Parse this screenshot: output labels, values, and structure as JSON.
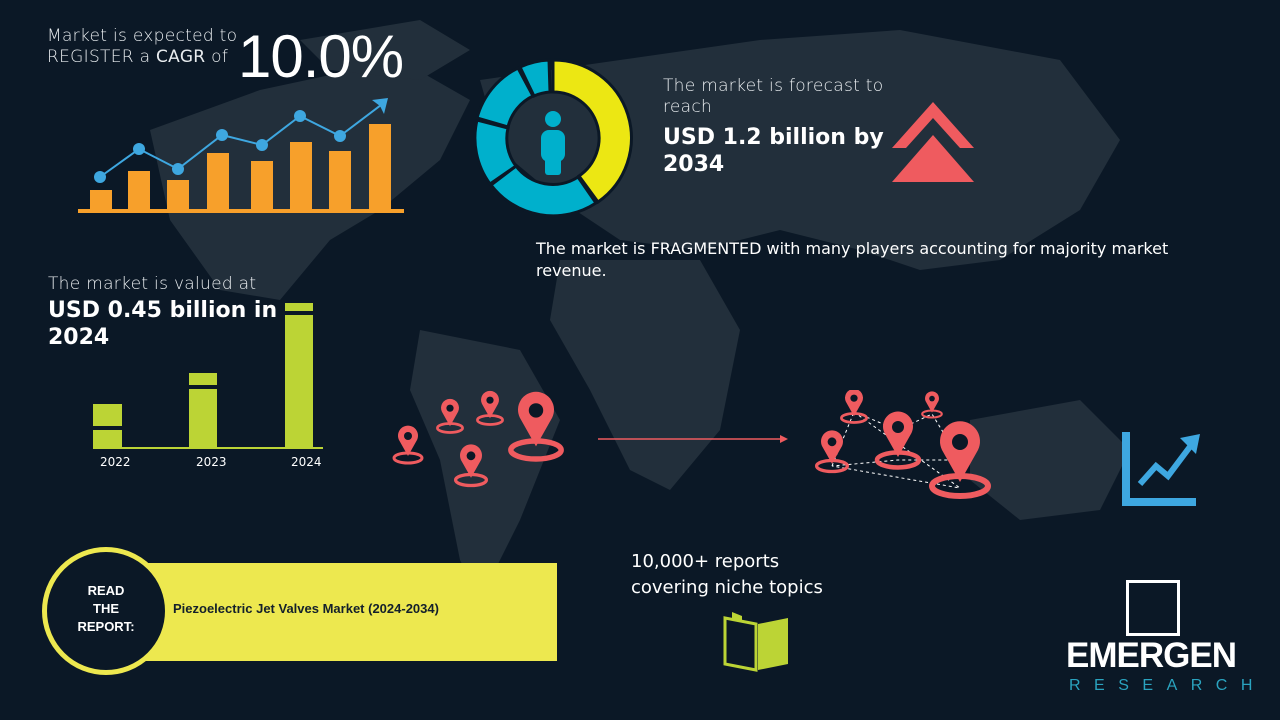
{
  "cagr": {
    "line1": "Market is expected to",
    "line2_pre": "REGISTER a",
    "line2_bold": "CAGR",
    "line2_post": "of",
    "value": "10.0%"
  },
  "forecast": {
    "intro": "The market is forecast to reach",
    "value": "USD 1.2 billion by 2034"
  },
  "fragmented": "The market is FRAGMENTED with many players accounting for majority market revenue.",
  "valued": {
    "intro": "The market is valued at",
    "value": "USD 0.45 billion in 2024"
  },
  "years": [
    "2022",
    "2023",
    "2024"
  ],
  "reports": {
    "line1": "10,000+ reports",
    "line2": "covering niche topics"
  },
  "read": {
    "label1": "READ",
    "label2": "THE",
    "label3": "REPORT:",
    "title": "Piezoelectric Jet Valves Market (2024-2034)"
  },
  "logo": {
    "name": "EMERGEN",
    "sub": "RESEARCH"
  },
  "colors": {
    "background": "#0b1826",
    "orange": "#f7a02b",
    "blue": "#3ea7e0",
    "yellow": "#ece713",
    "cyan": "#00b0cc",
    "red": "#ef5b5f",
    "green": "#bcd435"
  }
}
